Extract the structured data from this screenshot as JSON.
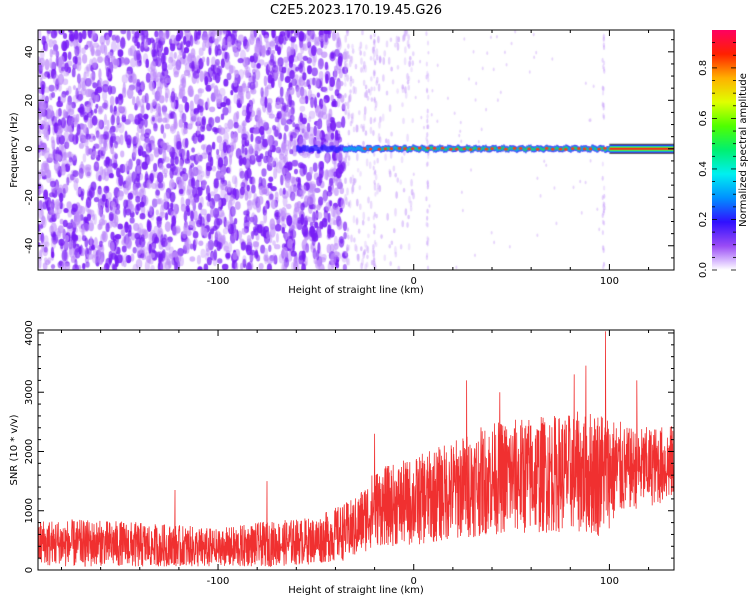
{
  "title": "C2E5.2023.170.19.45.G26",
  "chart_data": [
    {
      "type": "heatmap",
      "xlabel": "Height of straight line (km)",
      "ylabel": "Frequency (Hz)",
      "xlim": [
        -192,
        133
      ],
      "ylim": [
        -50,
        49
      ],
      "xticks": [
        "-100",
        "0",
        "100"
      ],
      "xtick_values": [
        -100,
        0,
        100
      ],
      "yticks": [
        "-40",
        "-20",
        "0",
        "20",
        "40"
      ],
      "ytick_values": [
        -40,
        -20,
        0,
        20,
        40
      ],
      "colorbar": {
        "label": "Normalized spectral amplitude",
        "ticks": [
          "0.0",
          "0.2",
          "0.4",
          "0.6",
          "0.8"
        ],
        "tick_values": [
          0.0,
          0.2,
          0.4,
          0.6,
          0.8
        ],
        "range": [
          0,
          0.95
        ]
      },
      "features": {
        "noise_region_x": [
          -192,
          -35
        ],
        "noise_amplitude": 0.1,
        "sparse_noise_x": [
          -35,
          0
        ],
        "carrier_start_x": -60,
        "carrier_frequency_hz": 0,
        "carrier_amplitude_before_100": 0.75,
        "carrier_amplitude_after_100": 0.95
      }
    },
    {
      "type": "line",
      "xlabel": "Height of straight line (km)",
      "ylabel": "SNR (10 * v/v)",
      "xlim": [
        -192,
        133
      ],
      "ylim": [
        0,
        4050
      ],
      "xticks": [
        "-100",
        "0",
        "100"
      ],
      "xtick_values": [
        -100,
        0,
        100
      ],
      "yticks": [
        "0",
        "1000",
        "2000",
        "3000",
        "4000"
      ],
      "ytick_values": [
        0,
        1000,
        2000,
        3000,
        4000
      ],
      "series_color": "#f03030",
      "envelope": [
        {
          "x": -192,
          "mean": 450,
          "spread": 420
        },
        {
          "x": -150,
          "mean": 430,
          "spread": 400
        },
        {
          "x": -120,
          "mean": 380,
          "spread": 380
        },
        {
          "x": -100,
          "mean": 350,
          "spread": 350
        },
        {
          "x": -80,
          "mean": 420,
          "spread": 380
        },
        {
          "x": -50,
          "mean": 500,
          "spread": 400
        },
        {
          "x": -30,
          "mean": 700,
          "spread": 520
        },
        {
          "x": -20,
          "mean": 1050,
          "spread": 650
        },
        {
          "x": 0,
          "mean": 1150,
          "spread": 750
        },
        {
          "x": 20,
          "mean": 1350,
          "spread": 850
        },
        {
          "x": 40,
          "mean": 1550,
          "spread": 950
        },
        {
          "x": 60,
          "mean": 1600,
          "spread": 1000
        },
        {
          "x": 80,
          "mean": 1650,
          "spread": 1000
        },
        {
          "x": 95,
          "mean": 1650,
          "spread": 1100
        },
        {
          "x": 110,
          "mean": 1700,
          "spread": 700
        },
        {
          "x": 133,
          "mean": 1800,
          "spread": 650
        }
      ],
      "spikes": [
        {
          "x": -122,
          "y": 1350
        },
        {
          "x": -75,
          "y": 1500
        },
        {
          "x": -20,
          "y": 2300
        },
        {
          "x": 27,
          "y": 3200
        },
        {
          "x": 44,
          "y": 3000
        },
        {
          "x": 82,
          "y": 3300
        },
        {
          "x": 88,
          "y": 3450
        },
        {
          "x": 98,
          "y": 4030
        },
        {
          "x": 114,
          "y": 3200
        }
      ]
    }
  ]
}
